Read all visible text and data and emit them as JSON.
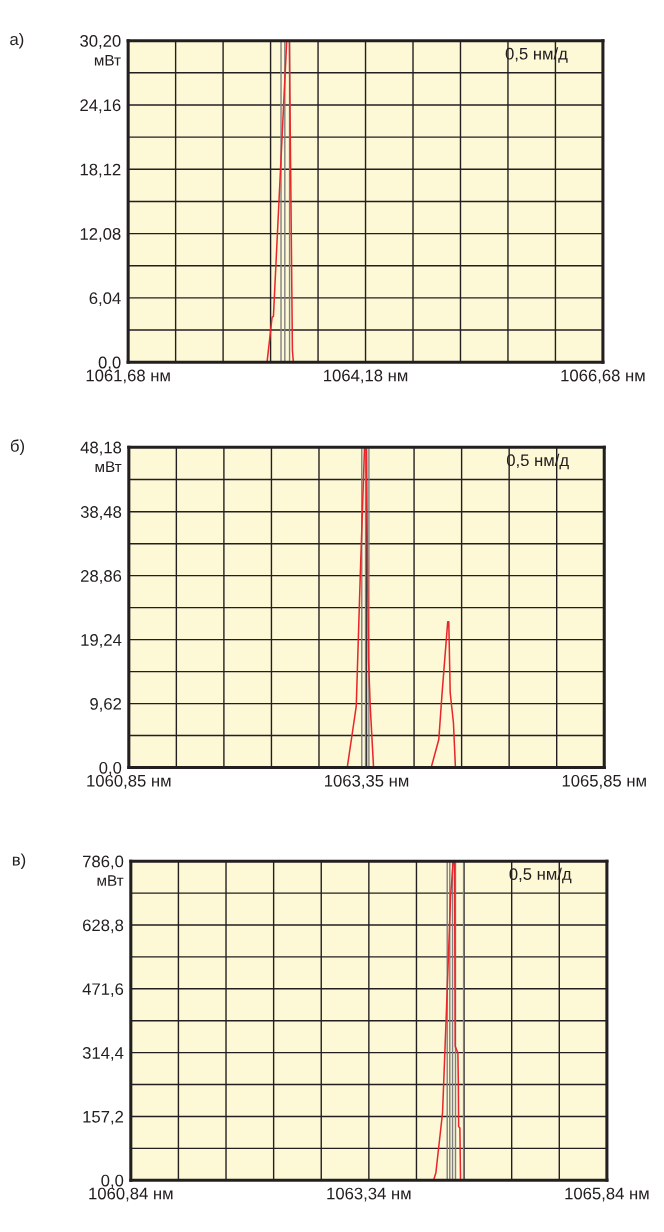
{
  "chart_data": [
    {
      "type": "line",
      "title": "а)",
      "ylabel": "мВт",
      "annotations": [
        "0,5 нм/д"
      ],
      "series": [
        {
          "color": "#e8262b",
          "x": [
            1061.68,
            1063.143,
            1063.196,
            1063.21,
            1063.35,
            1063.378,
            1063.41,
            1063.42,
            1066.68
          ],
          "values": [
            0,
            0,
            4.22,
            4.3,
            30.2,
            30.2,
            1.1,
            0,
            0
          ]
        }
      ],
      "xlim": [
        1061.68,
        1066.68
      ],
      "xticks": [
        {
          "value": 1061.68,
          "label": "1061,68 нм"
        },
        {
          "value": 1062.18,
          "label": null
        },
        {
          "value": 1062.68,
          "label": null
        },
        {
          "value": 1063.18,
          "label": null
        },
        {
          "value": 1063.68,
          "label": null
        },
        {
          "value": 1064.18,
          "label": "1064,18 нм"
        },
        {
          "value": 1064.68,
          "label": null
        },
        {
          "value": 1065.18,
          "label": null
        },
        {
          "value": 1065.68,
          "label": null
        },
        {
          "value": 1066.18,
          "label": null
        },
        {
          "value": 1066.68,
          "label": "1066,68 нм"
        }
      ],
      "ylim": [
        0,
        30.2
      ],
      "yticks": [
        {
          "value": 0,
          "label": "0,0"
        },
        {
          "value": 3.02,
          "label": null
        },
        {
          "value": 6.04,
          "label": "6,04"
        },
        {
          "value": 9.06,
          "label": null
        },
        {
          "value": 12.08,
          "label": "12,08"
        },
        {
          "value": 15.1,
          "label": null
        },
        {
          "value": 18.12,
          "label": "18,12"
        },
        {
          "value": 21.14,
          "label": null
        },
        {
          "value": 24.16,
          "label": "24,16"
        },
        {
          "value": 27.18,
          "label": null
        },
        {
          "value": 30.2,
          "label": "30,20"
        }
      ],
      "ref_lines": [
        {
          "axis": "x",
          "value": 1063.29,
          "color": "#7f7f7f"
        },
        {
          "axis": "x",
          "value": 1063.33,
          "color": "#7f7f7f"
        },
        {
          "axis": "x",
          "value": 1063.38,
          "color": "#7f7f7f"
        }
      ],
      "grid": true,
      "legend": false
    },
    {
      "type": "line",
      "title": "б)",
      "ylabel": "мВт",
      "annotations": [
        "0,5 нм/д"
      ],
      "series": [
        {
          "color": "#e8262b",
          "x": [
            1060.85,
            1063.147,
            1063.206,
            1063.242,
            1063.284,
            1063.329,
            1063.347,
            1063.371,
            1063.389,
            1063.424,
            1064.03,
            1064.11,
            1064.145,
            1064.204,
            1064.215,
            1064.23,
            1064.264,
            1064.285,
            1065.85
          ],
          "values": [
            0,
            0,
            5.72,
            9.23,
            28.8,
            48.18,
            48.18,
            16.26,
            9.23,
            0,
            0,
            4.22,
            11.25,
            21.94,
            21.94,
            11.25,
            6.73,
            0,
            0
          ]
        }
      ],
      "xlim": [
        1060.85,
        1065.85
      ],
      "xticks": [
        {
          "value": 1060.85,
          "label": "1060,85 нм"
        },
        {
          "value": 1061.35,
          "label": null
        },
        {
          "value": 1061.85,
          "label": null
        },
        {
          "value": 1062.35,
          "label": null
        },
        {
          "value": 1062.85,
          "label": null
        },
        {
          "value": 1063.35,
          "label": "1063,35 нм"
        },
        {
          "value": 1063.85,
          "label": null
        },
        {
          "value": 1064.35,
          "label": null
        },
        {
          "value": 1064.85,
          "label": null
        },
        {
          "value": 1065.35,
          "label": null
        },
        {
          "value": 1065.85,
          "label": "1065,85 нм"
        }
      ],
      "ylim": [
        0,
        48.18
      ],
      "yticks": [
        {
          "value": 0,
          "label": "0,0"
        },
        {
          "value": 4.81,
          "label": null
        },
        {
          "value": 9.62,
          "label": "9,62"
        },
        {
          "value": 14.43,
          "label": null
        },
        {
          "value": 19.24,
          "label": "19,24"
        },
        {
          "value": 24.05,
          "label": null
        },
        {
          "value": 28.86,
          "label": "28,86"
        },
        {
          "value": 33.67,
          "label": null
        },
        {
          "value": 38.48,
          "label": "38,48"
        },
        {
          "value": 43.33,
          "label": null
        },
        {
          "value": 48.18,
          "label": "48,18"
        }
      ],
      "ref_lines": [
        {
          "axis": "x",
          "value": 1063.3,
          "color": "#7f7f7f"
        },
        {
          "axis": "x",
          "value": 1063.34,
          "color": "#7f7f7f"
        },
        {
          "axis": "x",
          "value": 1063.375,
          "color": "#7f7f7f"
        }
      ],
      "grid": true,
      "legend": false
    },
    {
      "type": "line",
      "title": "в)",
      "ylabel": "мВт",
      "annotations": [
        "0,5 нм/д"
      ],
      "series": [
        {
          "color": "#e8262b",
          "x": [
            1060.84,
            1064.02,
            1064.044,
            1064.114,
            1064.162,
            1064.198,
            1064.226,
            1064.24,
            1064.247,
            1064.275,
            1064.28,
            1064.283,
            1064.296,
            1064.303,
            1065.84
          ],
          "values": [
            0,
            0,
            18.5,
            166.3,
            462,
            698.5,
            786,
            786,
            329.7,
            314,
            240,
            132.6,
            129,
            0,
            0
          ]
        }
      ],
      "xlim": [
        1060.84,
        1065.84
      ],
      "xticks": [
        {
          "value": 1060.84,
          "label": "1060,84 нм"
        },
        {
          "value": 1061.34,
          "label": null
        },
        {
          "value": 1061.84,
          "label": null
        },
        {
          "value": 1062.34,
          "label": null
        },
        {
          "value": 1062.84,
          "label": null
        },
        {
          "value": 1063.34,
          "label": "1063,34 нм"
        },
        {
          "value": 1063.84,
          "label": null
        },
        {
          "value": 1064.34,
          "label": null
        },
        {
          "value": 1064.84,
          "label": null
        },
        {
          "value": 1065.34,
          "label": null
        },
        {
          "value": 1065.84,
          "label": "1065,84 нм"
        }
      ],
      "ylim": [
        0,
        786
      ],
      "yticks": [
        {
          "value": 0,
          "label": "0,0"
        },
        {
          "value": 78.6,
          "label": null
        },
        {
          "value": 157.2,
          "label": "157,2"
        },
        {
          "value": 235.8,
          "label": null
        },
        {
          "value": 314.4,
          "label": "314,4"
        },
        {
          "value": 393,
          "label": null
        },
        {
          "value": 471.6,
          "label": "471,6"
        },
        {
          "value": 550.2,
          "label": null
        },
        {
          "value": 628.8,
          "label": "628,8"
        },
        {
          "value": 707.4,
          "label": null
        },
        {
          "value": 786,
          "label": "786,0"
        }
      ],
      "ref_lines": [
        {
          "axis": "x",
          "value": 1064.163,
          "color": "#7f7f7f"
        },
        {
          "axis": "x",
          "value": 1064.19,
          "color": "#7f7f7f"
        },
        {
          "axis": "x",
          "value": 1064.219,
          "color": "#7f7f7f"
        },
        {
          "axis": "x",
          "value": 1064.25,
          "color": "#7f7f7f"
        },
        {
          "axis": "x",
          "value": 1064.335,
          "color": "#7f7f7f"
        }
      ],
      "grid": true,
      "legend": false
    }
  ]
}
